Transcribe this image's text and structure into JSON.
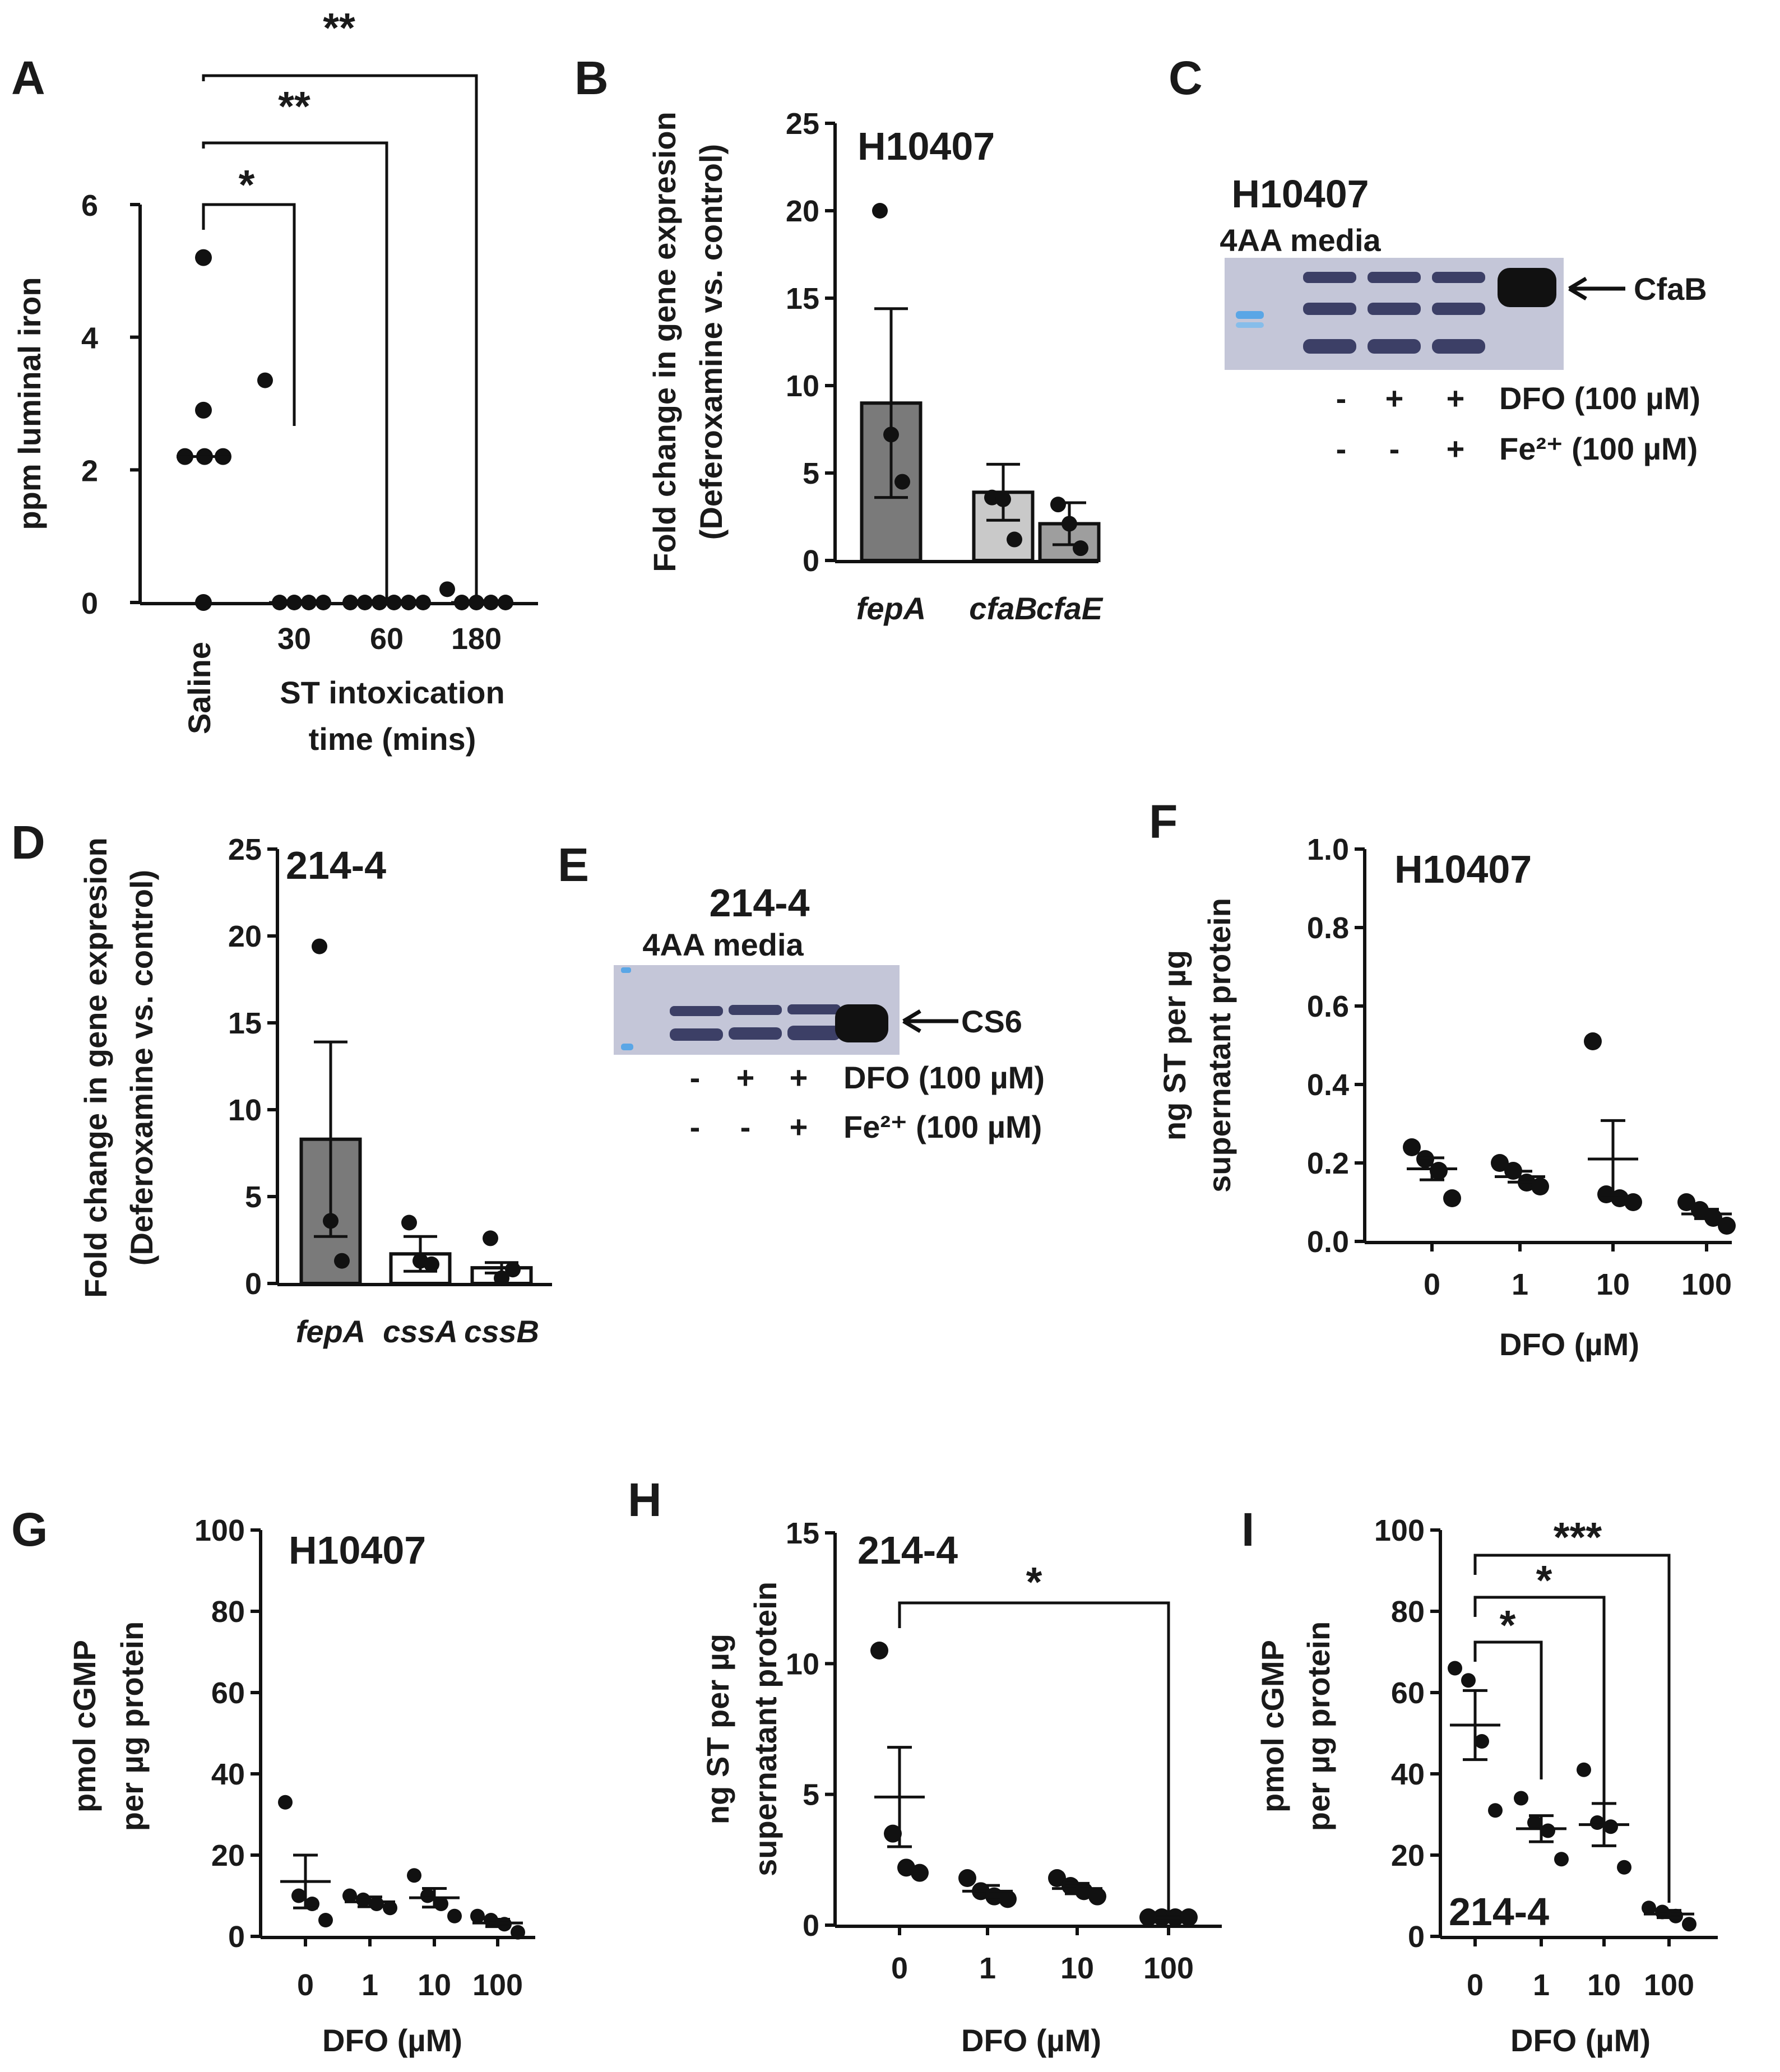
{
  "chart_data": [
    {
      "panel": "A",
      "type": "scatter",
      "ylabel": "ppm luminal iron",
      "xlabel": "ST intoxication time (mins)",
      "xlabel_lines": [
        "ST intoxication",
        "time (mins)"
      ],
      "ylim": [
        0,
        6
      ],
      "yticks": [
        0,
        2,
        4,
        6
      ],
      "categories": [
        "Saline",
        "30",
        "60",
        "180"
      ],
      "points": [
        [
          5.2,
          2.9,
          2.2,
          2.2,
          2.2,
          0
        ],
        [
          3.35,
          0,
          0,
          0,
          0
        ],
        [
          0,
          0,
          0,
          0,
          0,
          0
        ],
        [
          0.2,
          0,
          0,
          0,
          0
        ]
      ],
      "means": [
        2.2,
        0,
        0,
        0
      ],
      "significance": [
        {
          "from": 0,
          "to": 1,
          "label": "*"
        },
        {
          "from": 0,
          "to": 2,
          "label": "**"
        },
        {
          "from": 0,
          "to": 3,
          "label": "**"
        }
      ]
    },
    {
      "panel": "B",
      "type": "bar",
      "title": "H10407",
      "ylabel": "Fold change in gene expresion (Deferoxamine vs. control)",
      "ylabel_lines": [
        "Fold change in gene expresion",
        "(Deferoxamine vs. control)"
      ],
      "ylim": [
        0,
        25
      ],
      "yticks": [
        0,
        5,
        10,
        15,
        20,
        25
      ],
      "categories": [
        "fepA",
        "cfaB",
        "cfaE"
      ],
      "values": [
        9.0,
        3.9,
        2.1
      ],
      "errors": [
        5.4,
        1.6,
        1.2
      ],
      "bar_colors": [
        "#7a7a7a",
        "#c9c9c9",
        "#9e9e9e"
      ],
      "points": [
        [
          20.0,
          3.6,
          3.2
        ],
        [
          7.2,
          3.5,
          2.1
        ],
        [
          4.5,
          1.2,
          0.7
        ]
      ]
    },
    {
      "panel": "D",
      "type": "bar",
      "title": "214-4",
      "ylabel": "Fold change in gene expresion (Deferoxamine vs. control)",
      "ylabel_lines": [
        "Fold change in gene expresion",
        "(Deferoxamine vs. control)"
      ],
      "ylim": [
        0,
        25
      ],
      "yticks": [
        0,
        5,
        10,
        15,
        20,
        25
      ],
      "categories": [
        "fepA",
        "cssA",
        "cssB"
      ],
      "values": [
        8.3,
        1.7,
        0.9
      ],
      "errors": [
        5.6,
        1.0,
        0.3
      ],
      "bar_colors": [
        "#7a7a7a",
        "#ffffff",
        "#ffffff"
      ],
      "points": [
        [
          19.4,
          3.5,
          2.6
        ],
        [
          3.6,
          1.3,
          0.3
        ],
        [
          1.3,
          1.1,
          0.8
        ]
      ]
    },
    {
      "panel": "F",
      "type": "scatter",
      "title": "H10407",
      "ylabel": "ng ST per µg supernatant protein",
      "ylabel_lines": [
        "ng ST per µg",
        "supernatant protein"
      ],
      "xlabel": "DFO (µM)",
      "ylim": [
        0,
        1.0
      ],
      "yticks": [
        "0.0",
        "0.2",
        "0.4",
        "0.6",
        "0.8",
        "1.0"
      ],
      "categories": [
        "0",
        "1",
        "10",
        "100"
      ],
      "points": [
        [
          0.24,
          0.21,
          0.18,
          0.11
        ],
        [
          0.2,
          0.18,
          0.15,
          0.14
        ],
        [
          0.51,
          0.12,
          0.11,
          0.1
        ],
        [
          0.1,
          0.08,
          0.06,
          0.04
        ]
      ],
      "means": [
        0.185,
        0.165,
        0.21,
        0.07
      ],
      "sem": [
        0.028,
        0.014,
        0.098,
        0.012
      ]
    },
    {
      "panel": "G",
      "type": "scatter",
      "title": "H10407",
      "ylabel": "pmol cGMP per µg protein",
      "ylabel_lines": [
        "pmol cGMP",
        "per µg protein"
      ],
      "xlabel": "DFO (µM)",
      "ylim": [
        0,
        100
      ],
      "yticks": [
        0,
        20,
        40,
        60,
        80,
        100
      ],
      "categories": [
        "0",
        "1",
        "10",
        "100"
      ],
      "points": [
        [
          33,
          10,
          8,
          4
        ],
        [
          10,
          9,
          8,
          7
        ],
        [
          15,
          10,
          8,
          5
        ],
        [
          5,
          4,
          3,
          1
        ]
      ],
      "means": [
        13.5,
        8.5,
        9.5,
        3.3
      ],
      "sem": [
        6.5,
        1.2,
        2.3,
        0.9
      ]
    },
    {
      "panel": "H",
      "type": "scatter",
      "title": "214-4",
      "ylabel": "ng ST per µg supernatant protein",
      "ylabel_lines": [
        "ng ST per µg",
        "supernatant protein"
      ],
      "xlabel": "DFO (µM)",
      "ylim": [
        0,
        15
      ],
      "yticks": [
        0,
        5,
        10,
        15
      ],
      "categories": [
        "0",
        "1",
        "10",
        "100"
      ],
      "points": [
        [
          10.5,
          3.5,
          2.2,
          2.0
        ],
        [
          1.8,
          1.3,
          1.1,
          1.0
        ],
        [
          1.8,
          1.5,
          1.3,
          1.1
        ],
        [
          0.3,
          0.3,
          0.3,
          0.3
        ]
      ],
      "means": [
        4.9,
        1.3,
        1.4,
        0.3
      ],
      "sem": [
        1.9,
        0.22,
        0.2,
        0.03
      ],
      "significance": [
        {
          "from": 0,
          "to": 3,
          "label": "*"
        }
      ]
    },
    {
      "panel": "I",
      "type": "scatter",
      "title": "214-4",
      "ylabel": "pmol cGMP per µg protein",
      "ylabel_lines": [
        "pmol cGMP",
        "per µg protein"
      ],
      "xlabel": "DFO (µM)",
      "ylim": [
        0,
        100
      ],
      "yticks": [
        0,
        20,
        40,
        60,
        80,
        100
      ],
      "categories": [
        "0",
        "1",
        "10",
        "100"
      ],
      "points": [
        [
          66,
          63,
          48,
          31
        ],
        [
          34,
          28,
          26,
          19
        ],
        [
          41,
          28,
          27,
          17
        ],
        [
          7,
          6,
          5,
          3
        ]
      ],
      "means": [
        52,
        26.5,
        27.5,
        5.5
      ],
      "sem": [
        8.5,
        3.2,
        5.2,
        0.9
      ],
      "significance": [
        {
          "from": 0,
          "to": 1,
          "label": "*"
        },
        {
          "from": 0,
          "to": 2,
          "label": "*"
        },
        {
          "from": 0,
          "to": 3,
          "label": "***"
        }
      ]
    }
  ],
  "blots": [
    {
      "panel": "C",
      "title": "H10407",
      "media": "4AA media",
      "band_label": "CfaB",
      "rows": [
        {
          "marks": [
            "-",
            "+",
            "+"
          ],
          "label": "DFO (100 µM)"
        },
        {
          "marks": [
            "-",
            "-",
            "+"
          ],
          "label": "Fe²⁺ (100 µM)"
        }
      ]
    },
    {
      "panel": "E",
      "title": "214-4",
      "media": "4AA media",
      "band_label": "CS6",
      "rows": [
        {
          "marks": [
            "-",
            "+",
            "+"
          ],
          "label": "DFO (100 µM)"
        },
        {
          "marks": [
            "-",
            "-",
            "+"
          ],
          "label": "Fe²⁺ (100 µM)"
        }
      ]
    }
  ],
  "colors": {
    "ink": "#111111",
    "membrane": "#c4c6d8",
    "band": "#3c3f66",
    "ladder": "#5aa6e6"
  }
}
